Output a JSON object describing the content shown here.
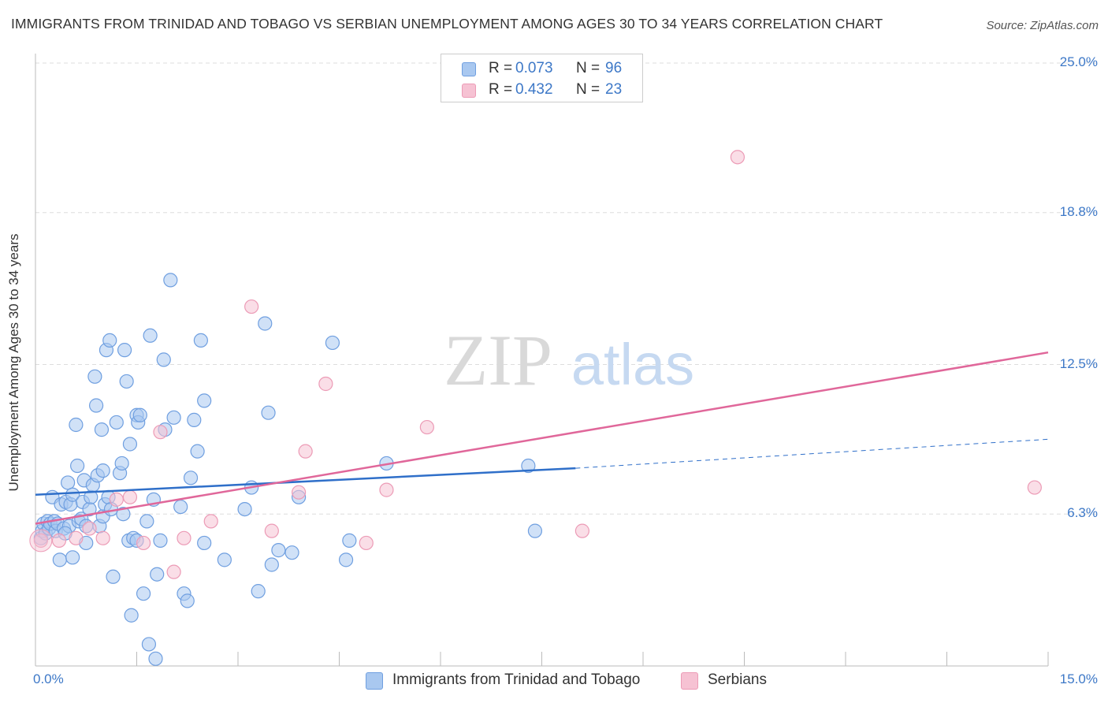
{
  "header": {
    "title": "IMMIGRANTS FROM TRINIDAD AND TOBAGO VS SERBIAN UNEMPLOYMENT AMONG AGES 30 TO 34 YEARS CORRELATION CHART",
    "source": "Source: ZipAtlas.com"
  },
  "watermark": {
    "zip": "ZIP",
    "atlas": "atlas"
  },
  "legend": {
    "r_label": "R =",
    "n_label": "N =",
    "rows": [
      {
        "r": "0.073",
        "n": "96"
      },
      {
        "r": "0.432",
        "n": "23"
      }
    ]
  },
  "colors": {
    "blue_fill": "#a9c8f0",
    "blue_stroke": "#6f9fe0",
    "blue_line": "#2f6fc9",
    "pink_fill": "#f6c2d3",
    "pink_stroke": "#ec9bb6",
    "pink_line": "#e0679a",
    "tick_text": "#3d78c7",
    "grid": "#dddddd"
  },
  "chart_data": {
    "type": "scatter",
    "title": "IMMIGRANTS FROM TRINIDAD AND TOBAGO VS SERBIAN UNEMPLOYMENT AMONG AGES 30 TO 34 YEARS CORRELATION CHART",
    "xlabel": "",
    "ylabel": "Unemployment Among Ages 30 to 34 years",
    "xlim": [
      0,
      15
    ],
    "ylim": [
      0,
      25
    ],
    "x_tick_labels": [
      "0.0%",
      "15.0%"
    ],
    "y_ticks": [
      6.3,
      12.5,
      18.8,
      25.0
    ],
    "y_tick_labels": [
      "6.3%",
      "12.5%",
      "18.8%",
      "25.0%"
    ],
    "grid": true,
    "legend_position": "top-center",
    "series": [
      {
        "name": "Immigrants from Trinidad and Tobago",
        "r": 0.073,
        "n": 96,
        "trend": {
          "x": [
            0,
            8.0
          ],
          "y": [
            7.1,
            8.2
          ]
        },
        "trend_dashed": {
          "x": [
            8.0,
            15.0
          ],
          "y": [
            8.2,
            9.4
          ]
        },
        "points": [
          [
            0.08,
            5.3
          ],
          [
            0.1,
            5.6
          ],
          [
            0.12,
            5.9
          ],
          [
            0.15,
            5.5
          ],
          [
            0.18,
            6.0
          ],
          [
            0.2,
            5.7
          ],
          [
            0.22,
            5.9
          ],
          [
            0.25,
            7.0
          ],
          [
            0.28,
            6.0
          ],
          [
            0.3,
            5.6
          ],
          [
            0.33,
            5.9
          ],
          [
            0.36,
            4.4
          ],
          [
            0.38,
            6.7
          ],
          [
            0.42,
            5.7
          ],
          [
            0.45,
            6.8
          ],
          [
            0.48,
            7.6
          ],
          [
            0.5,
            5.8
          ],
          [
            0.52,
            6.7
          ],
          [
            0.55,
            7.1
          ],
          [
            0.6,
            10.0
          ],
          [
            0.62,
            8.3
          ],
          [
            0.64,
            6.0
          ],
          [
            0.68,
            6.1
          ],
          [
            0.7,
            6.8
          ],
          [
            0.72,
            7.7
          ],
          [
            0.75,
            5.8
          ],
          [
            0.8,
            6.5
          ],
          [
            0.82,
            7.0
          ],
          [
            0.85,
            7.5
          ],
          [
            0.88,
            12.0
          ],
          [
            0.9,
            10.8
          ],
          [
            0.92,
            7.9
          ],
          [
            0.95,
            5.8
          ],
          [
            0.98,
            9.8
          ],
          [
            1.0,
            6.2
          ],
          [
            1.03,
            6.7
          ],
          [
            1.05,
            13.1
          ],
          [
            1.08,
            7.0
          ],
          [
            1.1,
            13.5
          ],
          [
            1.12,
            6.5
          ],
          [
            1.15,
            3.7
          ],
          [
            1.2,
            10.1
          ],
          [
            1.25,
            8.0
          ],
          [
            1.28,
            8.4
          ],
          [
            1.3,
            6.3
          ],
          [
            1.32,
            13.1
          ],
          [
            1.35,
            11.8
          ],
          [
            1.38,
            5.2
          ],
          [
            1.4,
            9.2
          ],
          [
            1.42,
            2.1
          ],
          [
            1.45,
            5.3
          ],
          [
            1.5,
            10.4
          ],
          [
            1.52,
            10.1
          ],
          [
            1.55,
            10.4
          ],
          [
            1.6,
            3.0
          ],
          [
            1.65,
            6.0
          ],
          [
            1.68,
            0.9
          ],
          [
            1.7,
            13.7
          ],
          [
            1.75,
            6.9
          ],
          [
            1.78,
            0.3
          ],
          [
            1.8,
            3.8
          ],
          [
            1.85,
            5.2
          ],
          [
            1.9,
            12.7
          ],
          [
            1.92,
            9.8
          ],
          [
            2.0,
            16.0
          ],
          [
            2.05,
            10.3
          ],
          [
            2.15,
            6.6
          ],
          [
            2.2,
            3.0
          ],
          [
            2.25,
            2.7
          ],
          [
            2.3,
            7.8
          ],
          [
            2.35,
            10.2
          ],
          [
            2.4,
            8.9
          ],
          [
            2.45,
            13.5
          ],
          [
            2.5,
            5.1
          ],
          [
            2.5,
            11.0
          ],
          [
            2.8,
            4.4
          ],
          [
            3.1,
            6.5
          ],
          [
            3.2,
            7.4
          ],
          [
            3.3,
            3.1
          ],
          [
            3.4,
            14.2
          ],
          [
            3.45,
            10.5
          ],
          [
            3.5,
            4.2
          ],
          [
            3.6,
            4.8
          ],
          [
            3.8,
            4.7
          ],
          [
            3.9,
            7.0
          ],
          [
            4.4,
            13.4
          ],
          [
            4.6,
            4.4
          ],
          [
            4.65,
            5.2
          ],
          [
            5.2,
            8.4
          ],
          [
            7.3,
            8.3
          ],
          [
            7.4,
            5.6
          ],
          [
            1.0,
            8.1
          ],
          [
            1.5,
            5.2
          ],
          [
            0.55,
            4.5
          ],
          [
            0.44,
            5.5
          ],
          [
            0.75,
            5.1
          ]
        ]
      },
      {
        "name": "Serbians",
        "r": 0.432,
        "n": 23,
        "trend": {
          "x": [
            0,
            15.0
          ],
          "y": [
            5.9,
            13.0
          ]
        },
        "points": [
          [
            0.08,
            5.2
          ],
          [
            0.35,
            5.2
          ],
          [
            0.6,
            5.3
          ],
          [
            0.8,
            5.7
          ],
          [
            1.0,
            5.3
          ],
          [
            1.2,
            6.9
          ],
          [
            1.4,
            7.0
          ],
          [
            1.6,
            5.1
          ],
          [
            1.85,
            9.7
          ],
          [
            2.05,
            3.9
          ],
          [
            2.2,
            5.3
          ],
          [
            2.6,
            6.0
          ],
          [
            3.2,
            14.9
          ],
          [
            3.5,
            5.6
          ],
          [
            3.9,
            7.2
          ],
          [
            4.0,
            8.9
          ],
          [
            4.3,
            11.7
          ],
          [
            4.9,
            5.1
          ],
          [
            5.2,
            7.3
          ],
          [
            5.8,
            9.9
          ],
          [
            8.1,
            5.6
          ],
          [
            10.4,
            21.1
          ],
          [
            14.8,
            7.4
          ]
        ]
      }
    ]
  },
  "bottom_legend": [
    "Immigrants from Trinidad and Tobago",
    "Serbians"
  ]
}
